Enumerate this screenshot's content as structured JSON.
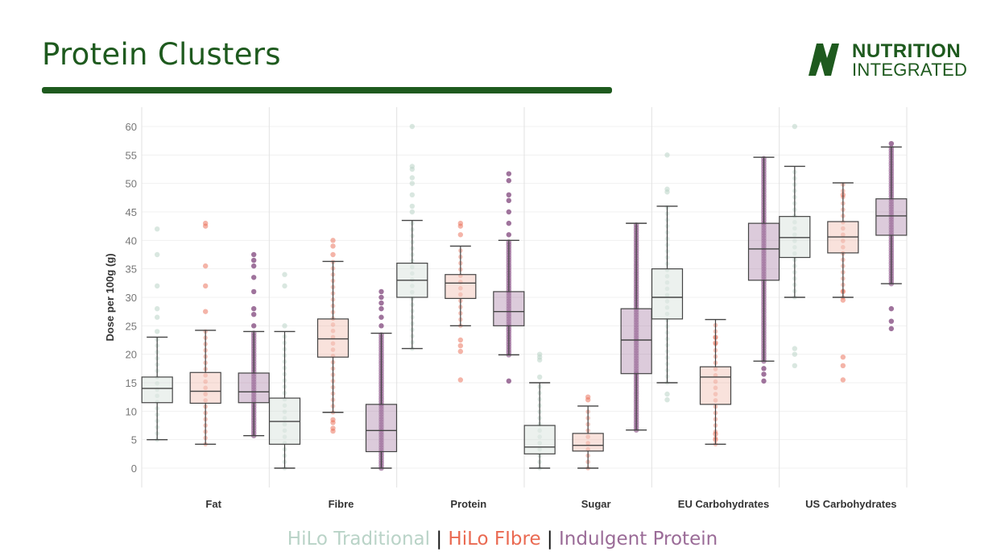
{
  "header": {
    "title": "Protein Clusters",
    "logo_line1": "NUTRITION",
    "logo_line2": "INTEGRATED",
    "logo_icon": "n-lightning-icon"
  },
  "colors": {
    "title": "#1e5a1e",
    "hilo_traditional": "#b9d3c7",
    "hilo_fibre": "#ea6a52",
    "indulgent_protein": "#9a6b97"
  },
  "legend": {
    "separator": "|",
    "items": [
      {
        "label": "HiLo Traditional",
        "color": "#b9d3c7"
      },
      {
        "label": "HiLo FIbre",
        "color": "#ea6a52"
      },
      {
        "label": "Indulgent Protein",
        "color": "#9a6b97"
      }
    ]
  },
  "chart_data": {
    "type": "box",
    "ylabel": "Dose per 100g (g)",
    "ylim": [
      0,
      60
    ],
    "yticks": [
      0,
      5,
      10,
      15,
      20,
      25,
      30,
      35,
      40,
      45,
      50,
      55,
      60
    ],
    "grid": true,
    "categories": [
      "Fat",
      "Fibre",
      "Protein",
      "Sugar",
      "EU Carbohydrates",
      "US Carbohydrates"
    ],
    "series": [
      {
        "name": "HiLo Traditional",
        "boxes": [
          {
            "min": 5,
            "q1": 11.5,
            "median": 14,
            "q3": 16,
            "max": 23,
            "outliers": [
              24,
              26.5,
              28,
              32,
              37.5,
              42
            ]
          },
          {
            "min": 0,
            "q1": 4.2,
            "median": 8.2,
            "q3": 12.3,
            "max": 24,
            "outliers": [
              25,
              32,
              34
            ]
          },
          {
            "min": 21,
            "q1": 30,
            "median": 33,
            "q3": 36,
            "max": 43.5,
            "outliers": [
              45,
              46,
              48,
              50,
              51,
              52.5,
              53,
              60
            ]
          },
          {
            "min": 0,
            "q1": 2.5,
            "median": 3.7,
            "q3": 7.5,
            "max": 15,
            "outliers": [
              16,
              19,
              19.5,
              20
            ]
          },
          {
            "min": 15,
            "q1": 26.2,
            "median": 30,
            "q3": 35,
            "max": 46,
            "outliers": [
              12,
              13,
              48.5,
              49,
              55
            ]
          },
          {
            "min": 30,
            "q1": 37,
            "median": 40.5,
            "q3": 44.2,
            "max": 53,
            "outliers": [
              18,
              20,
              21,
              60
            ]
          }
        ]
      },
      {
        "name": "HiLo FIbre",
        "boxes": [
          {
            "min": 4.2,
            "q1": 11.4,
            "median": 13.5,
            "q3": 16.8,
            "max": 24.2,
            "outliers": [
              27.5,
              32,
              35.5,
              42.5,
              43
            ]
          },
          {
            "min": 9.8,
            "q1": 19.5,
            "median": 22.7,
            "q3": 26.2,
            "max": 36.3,
            "outliers": [
              6.5,
              7,
              8,
              8.5,
              37.5,
              39,
              40
            ]
          },
          {
            "min": 25,
            "q1": 29.8,
            "median": 32.5,
            "q3": 34,
            "max": 39,
            "outliers": [
              15.5,
              20.5,
              21.5,
              22.5,
              41,
              42.5,
              43
            ]
          },
          {
            "min": 0,
            "q1": 3,
            "median": 4,
            "q3": 6.1,
            "max": 10.9,
            "outliers": [
              12,
              12.5
            ]
          },
          {
            "min": 4.2,
            "q1": 11.2,
            "median": 16,
            "q3": 17.8,
            "max": 26.1,
            "outliers": [
              5,
              6,
              22,
              23
            ]
          },
          {
            "min": 30,
            "q1": 37.8,
            "median": 40.6,
            "q3": 43.3,
            "max": 50.1,
            "outliers": [
              15.5,
              18,
              19.5,
              29.5,
              31,
              48
            ]
          }
        ]
      },
      {
        "name": "Indulgent Protein",
        "boxes": [
          {
            "min": 5.7,
            "q1": 11.5,
            "median": 13.4,
            "q3": 16.7,
            "max": 24,
            "outliers": [
              25,
              27,
              28,
              31,
              33.5,
              35.5,
              36.5,
              37.5
            ]
          },
          {
            "min": 0,
            "q1": 2.9,
            "median": 6.6,
            "q3": 11.2,
            "max": 23.7,
            "outliers": [
              25,
              26.5,
              28,
              29,
              30,
              31
            ]
          },
          {
            "min": 19.9,
            "q1": 25,
            "median": 27.5,
            "q3": 31,
            "max": 40,
            "outliers": [
              15.3,
              41,
              43,
              45,
              47,
              48,
              50.5,
              51.7
            ]
          },
          {
            "min": 6.7,
            "q1": 16.6,
            "median": 22.5,
            "q3": 28,
            "max": 43,
            "outliers": []
          },
          {
            "min": 18.8,
            "q1": 33,
            "median": 38.5,
            "q3": 43,
            "max": 54.6,
            "outliers": [
              15.3,
              16.5,
              17.5
            ]
          },
          {
            "min": 32.4,
            "q1": 40.9,
            "median": 44.3,
            "q3": 47.3,
            "max": 56.4,
            "outliers": [
              24.5,
              25.8,
              28,
              57
            ]
          }
        ]
      }
    ]
  }
}
